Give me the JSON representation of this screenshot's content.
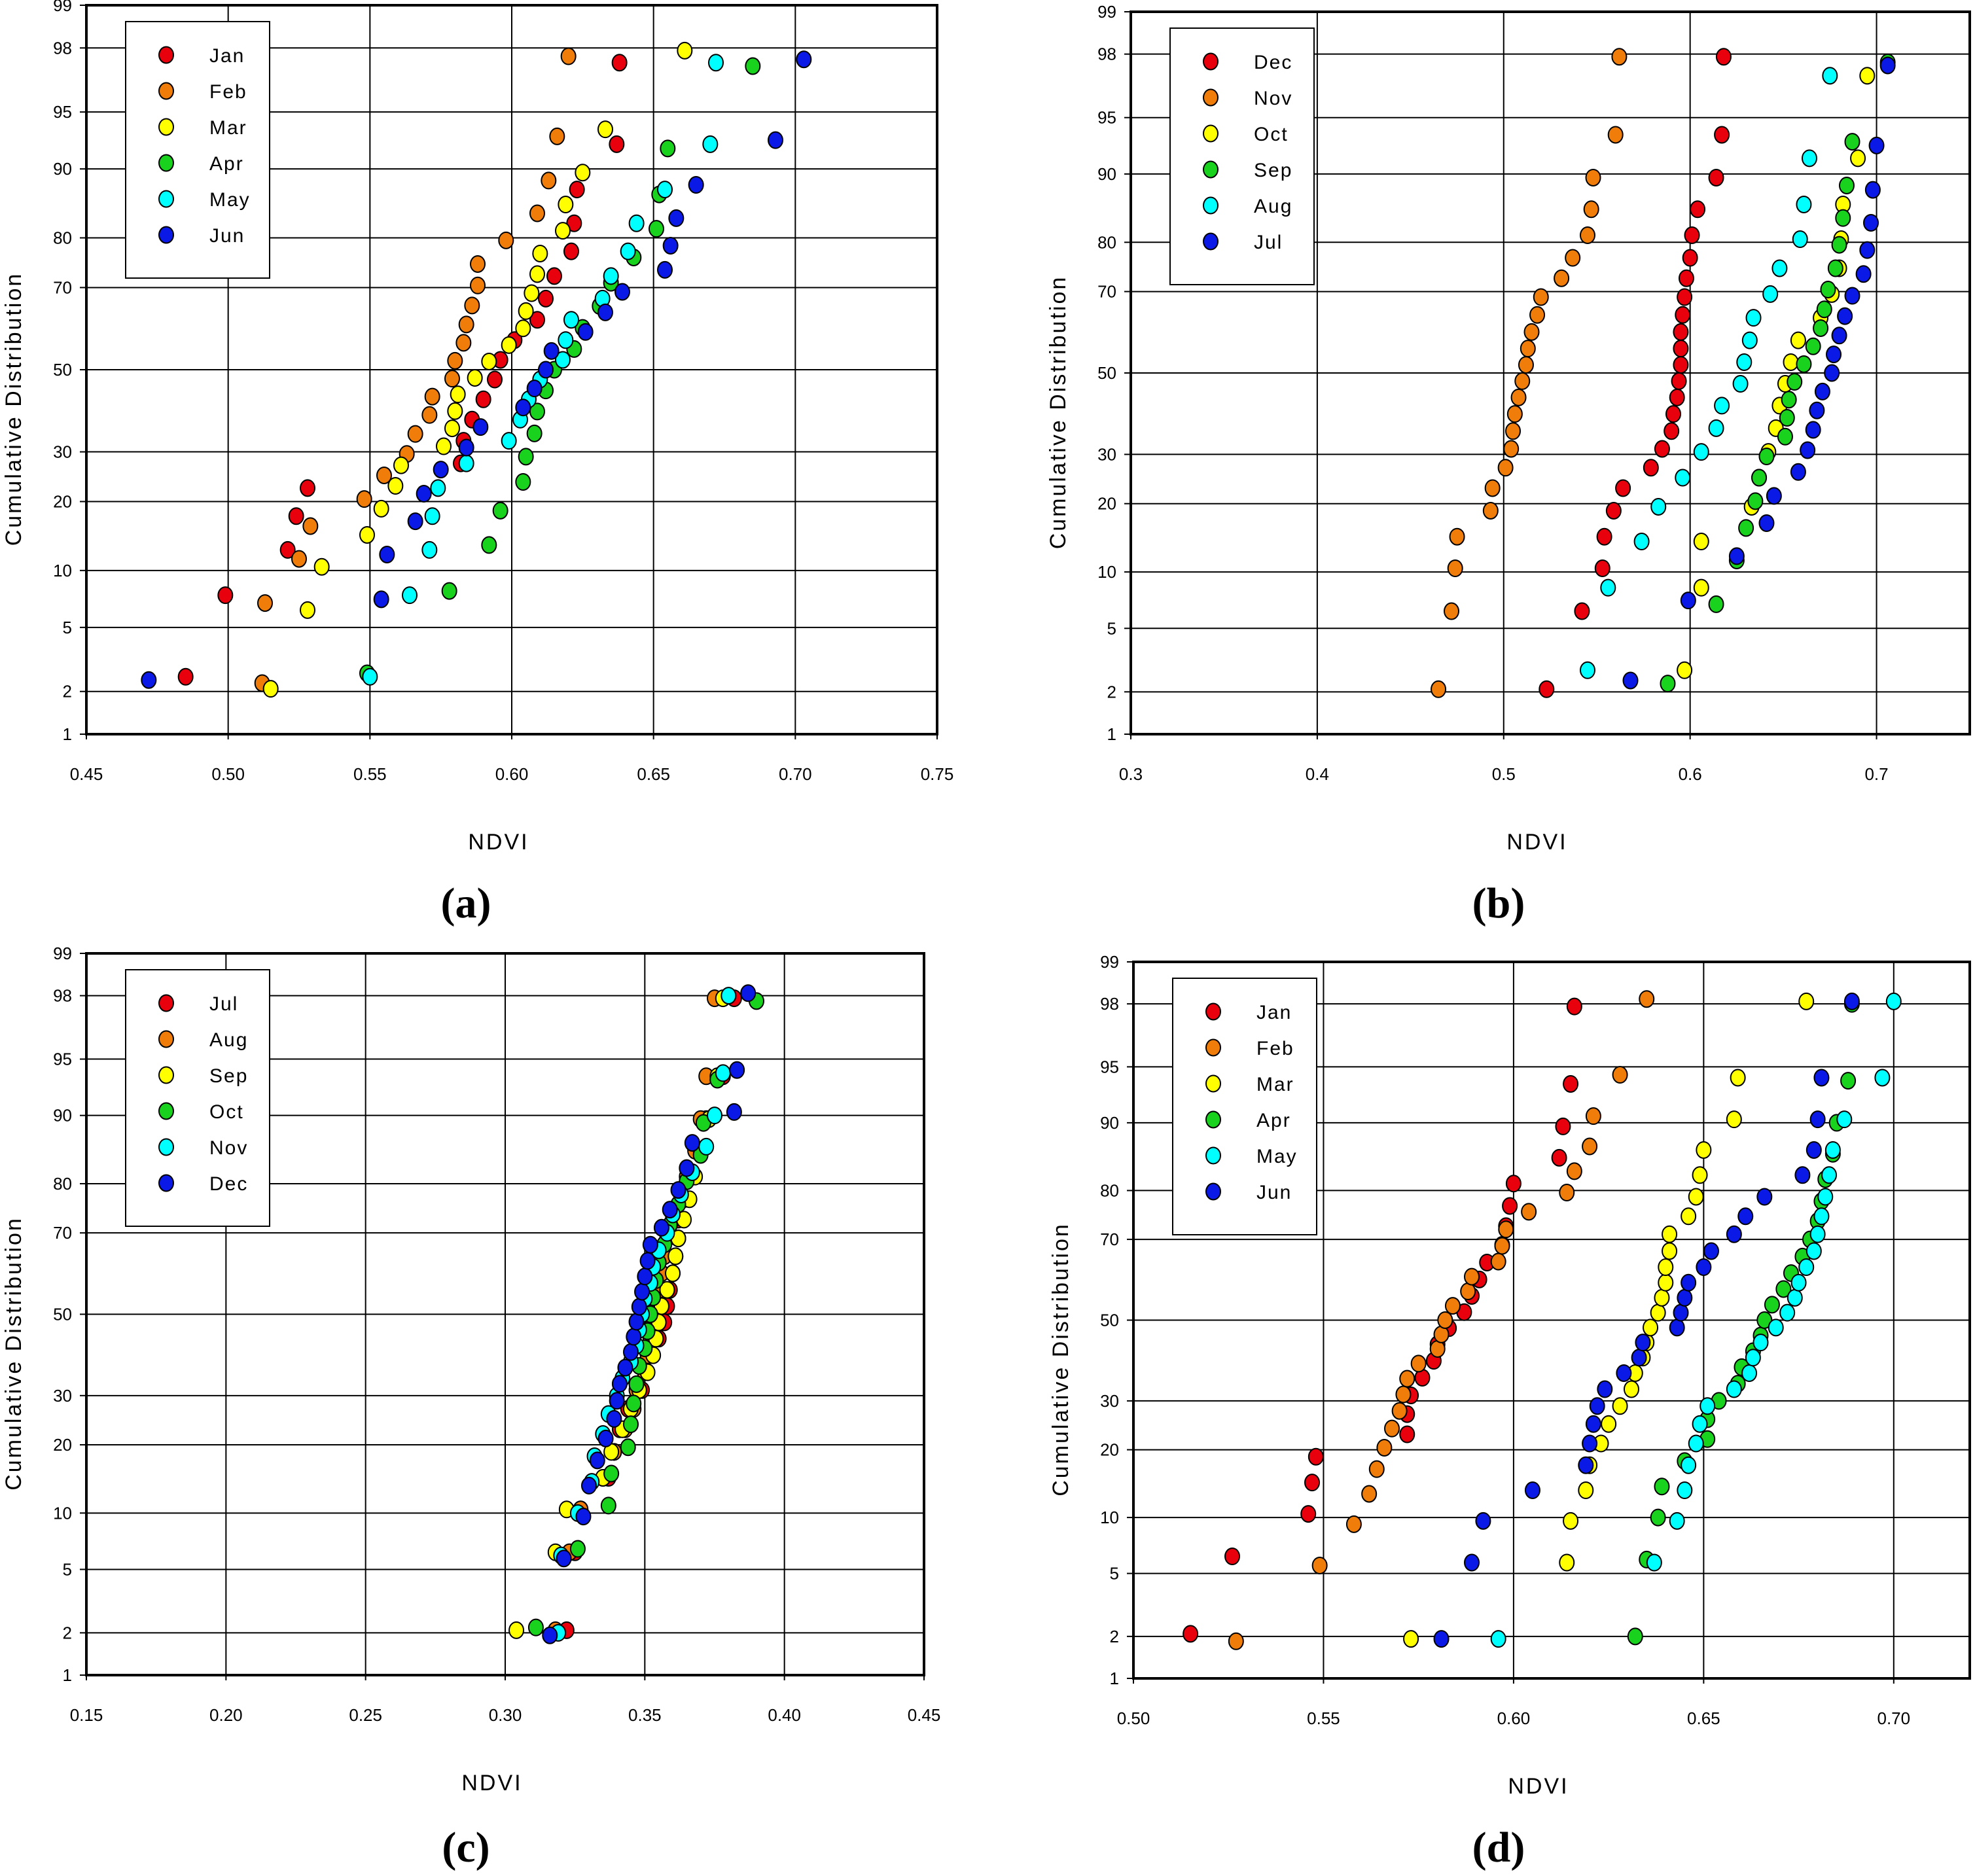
{
  "colors": {
    "red": "#e8000d",
    "orange": "#f07d0a",
    "yellow": "#ffff00",
    "green": "#19d21e",
    "cyan": "#00ffff",
    "blue": "#0a19e6"
  },
  "chart_data": [
    {
      "type": "scatter",
      "panel_label": "(a)",
      "xlabel": "NDVI",
      "ylabel": "Cumulative Distribution",
      "xlim": [
        0.45,
        0.75
      ],
      "x_ticks": [
        "0.45",
        "0.50",
        "0.55",
        "0.60",
        "0.65",
        "0.70",
        "0.75"
      ],
      "y_scale": "normal-probability",
      "y_ticks": [
        "1",
        "2",
        "5",
        "10",
        "20",
        "30",
        "50",
        "70",
        "80",
        "90",
        "95",
        "98",
        "99"
      ],
      "grid": true,
      "legend_position": "top-left",
      "series": [
        {
          "name": "Jan",
          "color": "#e8000d",
          "x": [
            0.485,
            0.499,
            0.521,
            0.524,
            0.528,
            0.582,
            0.583,
            0.586,
            0.59,
            0.594,
            0.596,
            0.601,
            0.609,
            0.612,
            0.615,
            0.621,
            0.622,
            0.623,
            0.637,
            0.638
          ]
        },
        {
          "name": "Feb",
          "color": "#f07d0a",
          "x": [
            0.512,
            0.513,
            0.525,
            0.529,
            0.548,
            0.555,
            0.563,
            0.566,
            0.571,
            0.572,
            0.579,
            0.58,
            0.583,
            0.584,
            0.586,
            0.588,
            0.588,
            0.598,
            0.609,
            0.613,
            0.616,
            0.62
          ]
        },
        {
          "name": "Mar",
          "color": "#ffff00",
          "x": [
            0.515,
            0.528,
            0.533,
            0.549,
            0.554,
            0.559,
            0.561,
            0.576,
            0.579,
            0.58,
            0.581,
            0.587,
            0.592,
            0.599,
            0.604,
            0.605,
            0.607,
            0.609,
            0.61,
            0.618,
            0.619,
            0.625,
            0.633,
            0.661
          ]
        },
        {
          "name": "Apr",
          "color": "#19d21e",
          "x": [
            0.549,
            0.578,
            0.592,
            0.596,
            0.604,
            0.605,
            0.608,
            0.609,
            0.612,
            0.615,
            0.622,
            0.625,
            0.631,
            0.635,
            0.643,
            0.651,
            0.652,
            0.655,
            0.685
          ]
        },
        {
          "name": "May",
          "color": "#00ffff",
          "x": [
            0.55,
            0.564,
            0.571,
            0.572,
            0.574,
            0.584,
            0.599,
            0.603,
            0.606,
            0.61,
            0.618,
            0.619,
            0.621,
            0.632,
            0.635,
            0.641,
            0.644,
            0.654,
            0.67,
            0.672
          ]
        },
        {
          "name": "Jun",
          "color": "#0a19e6",
          "x": [
            0.472,
            0.554,
            0.556,
            0.566,
            0.569,
            0.575,
            0.584,
            0.589,
            0.604,
            0.608,
            0.612,
            0.614,
            0.626,
            0.633,
            0.639,
            0.654,
            0.656,
            0.658,
            0.665,
            0.693,
            0.703
          ]
        }
      ]
    },
    {
      "type": "scatter",
      "panel_label": "(b)",
      "xlabel": "NDVI",
      "ylabel": "Cumulative Distribution",
      "xlim": [
        0.3,
        0.75
      ],
      "x_ticks": [
        "0.3",
        "0.4",
        "0.5",
        "0.6",
        "0.7"
      ],
      "x_tick_values": [
        0.3,
        0.4,
        0.5,
        0.6,
        0.7
      ],
      "y_scale": "normal-probability",
      "y_ticks": [
        "1",
        "2",
        "5",
        "10",
        "20",
        "30",
        "50",
        "70",
        "80",
        "90",
        "95",
        "98",
        "99"
      ],
      "grid": true,
      "legend_position": "top-left",
      "series": [
        {
          "name": "Dec",
          "color": "#e8000d",
          "x": [
            0.523,
            0.542,
            0.553,
            0.554,
            0.559,
            0.564,
            0.579,
            0.585,
            0.59,
            0.591,
            0.593,
            0.594,
            0.595,
            0.595,
            0.595,
            0.596,
            0.597,
            0.598,
            0.6,
            0.601,
            0.604,
            0.614,
            0.617,
            0.618
          ]
        },
        {
          "name": "Nov",
          "color": "#f07d0a",
          "x": [
            0.465,
            0.472,
            0.475,
            0.474,
            0.493,
            0.494,
            0.501,
            0.504,
            0.505,
            0.506,
            0.508,
            0.51,
            0.512,
            0.513,
            0.515,
            0.518,
            0.52,
            0.531,
            0.537,
            0.545,
            0.547,
            0.548,
            0.56,
            0.562
          ]
        },
        {
          "name": "Oct",
          "color": "#ffff00",
          "x": [
            0.597,
            0.606,
            0.606,
            0.633,
            0.637,
            0.642,
            0.646,
            0.648,
            0.651,
            0.654,
            0.658,
            0.67,
            0.676,
            0.68,
            0.681,
            0.682,
            0.69,
            0.695
          ]
        },
        {
          "name": "Sep",
          "color": "#19d21e",
          "x": [
            0.588,
            0.614,
            0.625,
            0.63,
            0.635,
            0.637,
            0.641,
            0.651,
            0.652,
            0.653,
            0.656,
            0.661,
            0.666,
            0.67,
            0.672,
            0.674,
            0.678,
            0.68,
            0.682,
            0.684,
            0.687,
            0.706
          ]
        },
        {
          "name": "Aug",
          "color": "#00ffff",
          "x": [
            0.545,
            0.556,
            0.574,
            0.583,
            0.596,
            0.606,
            0.614,
            0.617,
            0.627,
            0.629,
            0.632,
            0.634,
            0.643,
            0.648,
            0.659,
            0.661,
            0.664,
            0.675
          ]
        },
        {
          "name": "Jul",
          "color": "#0a19e6",
          "x": [
            0.568,
            0.599,
            0.625,
            0.641,
            0.645,
            0.658,
            0.663,
            0.666,
            0.668,
            0.671,
            0.676,
            0.677,
            0.68,
            0.683,
            0.687,
            0.693,
            0.695,
            0.697,
            0.698,
            0.7,
            0.706
          ]
        }
      ]
    },
    {
      "type": "scatter",
      "panel_label": "(c)",
      "xlabel": "NDVI",
      "ylabel": "Cumulative Distribution",
      "xlim": [
        0.15,
        0.45
      ],
      "x_ticks": [
        "0.15",
        "0.20",
        "0.25",
        "0.30",
        "0.35",
        "0.40",
        "0.45"
      ],
      "y_scale": "normal-probability",
      "y_ticks": [
        "1",
        "2",
        "5",
        "10",
        "20",
        "30",
        "50",
        "70",
        "80",
        "90",
        "95",
        "98",
        "99"
      ],
      "grid": true,
      "legend_position": "top-left",
      "series": [
        {
          "name": "Jul",
          "color": "#e8000d",
          "x": [
            0.322,
            0.325,
            0.327,
            0.337,
            0.339,
            0.341,
            0.344,
            0.349,
            0.35,
            0.352,
            0.355,
            0.357,
            0.358,
            0.359,
            0.36,
            0.361,
            0.362,
            0.362,
            0.364,
            0.367,
            0.37,
            0.372,
            0.378,
            0.382
          ]
        },
        {
          "name": "Aug",
          "color": "#f07d0a",
          "x": [
            0.318,
            0.323,
            0.327,
            0.335,
            0.339,
            0.343,
            0.347,
            0.346,
            0.35,
            0.351,
            0.352,
            0.353,
            0.354,
            0.355,
            0.356,
            0.357,
            0.358,
            0.36,
            0.363,
            0.365,
            0.368,
            0.37,
            0.372,
            0.375
          ]
        },
        {
          "name": "Sep",
          "color": "#ffff00",
          "x": [
            0.304,
            0.318,
            0.322,
            0.335,
            0.338,
            0.342,
            0.345,
            0.348,
            0.351,
            0.353,
            0.354,
            0.355,
            0.356,
            0.358,
            0.36,
            0.361,
            0.362,
            0.364,
            0.366,
            0.368,
            0.37,
            0.373,
            0.376,
            0.378
          ]
        },
        {
          "name": "Oct",
          "color": "#19d21e",
          "x": [
            0.311,
            0.326,
            0.337,
            0.338,
            0.344,
            0.345,
            0.346,
            0.347,
            0.348,
            0.35,
            0.351,
            0.352,
            0.353,
            0.354,
            0.355,
            0.357,
            0.359,
            0.362,
            0.365,
            0.37,
            0.371,
            0.376,
            0.39
          ]
        },
        {
          "name": "Nov",
          "color": "#00ffff",
          "x": [
            0.319,
            0.32,
            0.326,
            0.331,
            0.332,
            0.335,
            0.337,
            0.34,
            0.342,
            0.345,
            0.347,
            0.348,
            0.349,
            0.35,
            0.352,
            0.353,
            0.355,
            0.358,
            0.36,
            0.363,
            0.367,
            0.372,
            0.375,
            0.378,
            0.38
          ]
        },
        {
          "name": "Dec",
          "color": "#0a19e6",
          "x": [
            0.316,
            0.321,
            0.328,
            0.33,
            0.333,
            0.336,
            0.339,
            0.34,
            0.341,
            0.343,
            0.345,
            0.346,
            0.347,
            0.348,
            0.349,
            0.35,
            0.351,
            0.352,
            0.356,
            0.359,
            0.362,
            0.365,
            0.367,
            0.382,
            0.383,
            0.387
          ]
        }
      ]
    },
    {
      "type": "scatter",
      "panel_label": "(d)",
      "xlabel": "NDVI",
      "ylabel": "Cumulative Distribution",
      "xlim": [
        0.5,
        0.72
      ],
      "x_ticks": [
        "0.50",
        "0.55",
        "0.60",
        "0.65",
        "0.70"
      ],
      "x_tick_values": [
        0.5,
        0.55,
        0.6,
        0.65,
        0.7
      ],
      "y_scale": "normal-probability",
      "y_ticks": [
        "1",
        "2",
        "5",
        "10",
        "20",
        "30",
        "50",
        "70",
        "80",
        "90",
        "95",
        "98",
        "99"
      ],
      "grid": true,
      "legend_position": "top-left",
      "series": [
        {
          "name": "Jan",
          "color": "#e8000d",
          "x": [
            0.515,
            0.526,
            0.546,
            0.547,
            0.548,
            0.572,
            0.572,
            0.573,
            0.576,
            0.579,
            0.58,
            0.583,
            0.587,
            0.589,
            0.591,
            0.593,
            0.597,
            0.598,
            0.599,
            0.6,
            0.612,
            0.613,
            0.615,
            0.616
          ]
        },
        {
          "name": "Feb",
          "color": "#f07d0a",
          "x": [
            0.527,
            0.549,
            0.558,
            0.562,
            0.564,
            0.566,
            0.568,
            0.57,
            0.571,
            0.572,
            0.575,
            0.58,
            0.581,
            0.582,
            0.584,
            0.588,
            0.589,
            0.596,
            0.597,
            0.598,
            0.604,
            0.614,
            0.616,
            0.62,
            0.621,
            0.628,
            0.635
          ]
        },
        {
          "name": "Mar",
          "color": "#ffff00",
          "x": [
            0.573,
            0.614,
            0.615,
            0.619,
            0.62,
            0.623,
            0.625,
            0.628,
            0.631,
            0.632,
            0.634,
            0.635,
            0.636,
            0.638,
            0.639,
            0.64,
            0.64,
            0.641,
            0.641,
            0.646,
            0.648,
            0.649,
            0.65,
            0.658,
            0.659,
            0.677
          ]
        },
        {
          "name": "Apr",
          "color": "#19d21e",
          "x": [
            0.632,
            0.635,
            0.638,
            0.639,
            0.645,
            0.651,
            0.651,
            0.654,
            0.659,
            0.66,
            0.663,
            0.665,
            0.666,
            0.668,
            0.671,
            0.673,
            0.676,
            0.678,
            0.68,
            0.681,
            0.682,
            0.685,
            0.684,
            0.688,
            0.689
          ]
        },
        {
          "name": "May",
          "color": "#00ffff",
          "x": [
            0.596,
            0.637,
            0.643,
            0.645,
            0.646,
            0.648,
            0.649,
            0.651,
            0.658,
            0.662,
            0.663,
            0.665,
            0.669,
            0.672,
            0.674,
            0.675,
            0.677,
            0.679,
            0.68,
            0.681,
            0.682,
            0.683,
            0.684,
            0.687,
            0.697,
            0.7
          ]
        },
        {
          "name": "Jun",
          "color": "#0a19e6",
          "x": [
            0.581,
            0.589,
            0.592,
            0.605,
            0.619,
            0.62,
            0.621,
            0.622,
            0.624,
            0.629,
            0.633,
            0.634,
            0.643,
            0.644,
            0.645,
            0.646,
            0.65,
            0.652,
            0.658,
            0.661,
            0.666,
            0.676,
            0.679,
            0.68,
            0.681,
            0.689
          ]
        }
      ]
    }
  ]
}
